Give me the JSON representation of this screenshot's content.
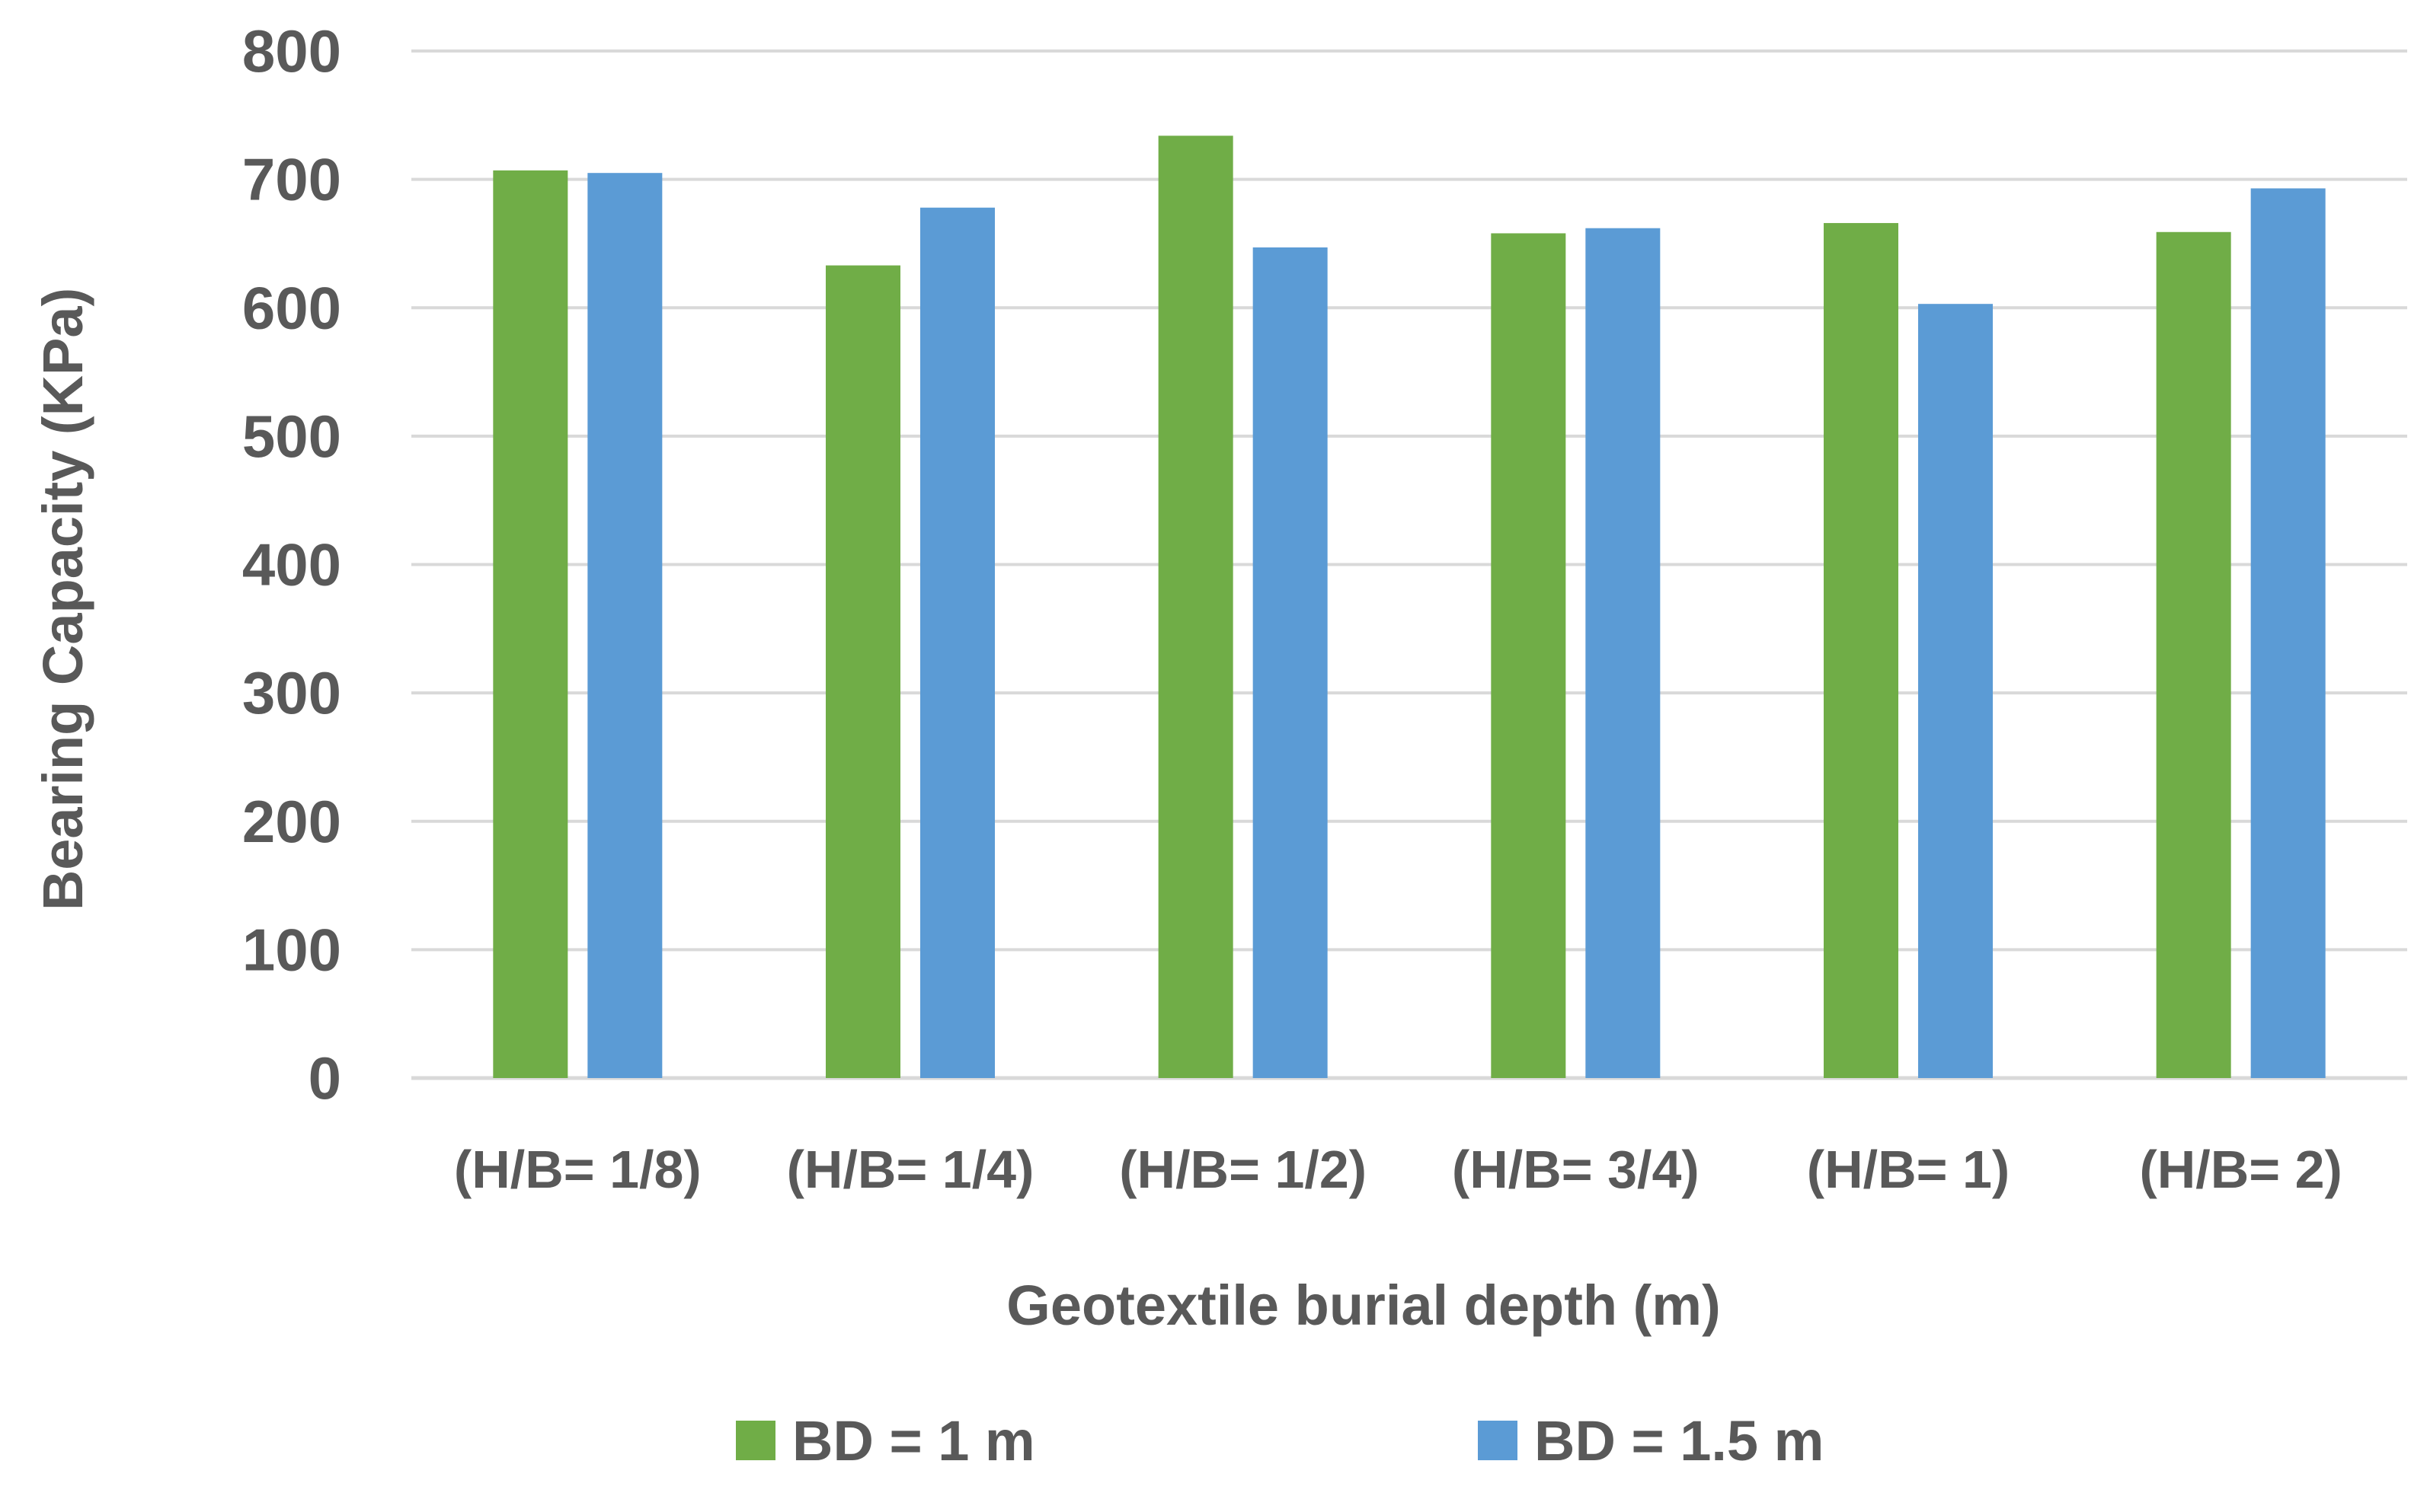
{
  "chart_data": {
    "type": "bar",
    "title": "",
    "xlabel": "Geotextile burial depth (m)",
    "ylabel": "Bearing Capacity (KPa)",
    "ylim": [
      0,
      800
    ],
    "yticks": [
      0,
      100,
      200,
      300,
      400,
      500,
      600,
      700,
      800
    ],
    "grid": true,
    "legend_position": "bottom",
    "categories": [
      "(H/B= 1/8)",
      "(H/B= 1/4)",
      "(H/B= 1/2)",
      "(H/B= 3/4)",
      "(H/B= 1)",
      "(H/B= 2)"
    ],
    "series": [
      {
        "name": "BD = 1 m",
        "color": "#70AD47",
        "values": [
          707,
          633,
          734,
          658,
          666,
          659
        ]
      },
      {
        "name": "BD = 1.5 m",
        "color": "#5B9BD5",
        "values": [
          705,
          678,
          647,
          662,
          603,
          693
        ]
      }
    ],
    "colors": {
      "grid": "#D9D9D9",
      "text": "#595959"
    }
  }
}
